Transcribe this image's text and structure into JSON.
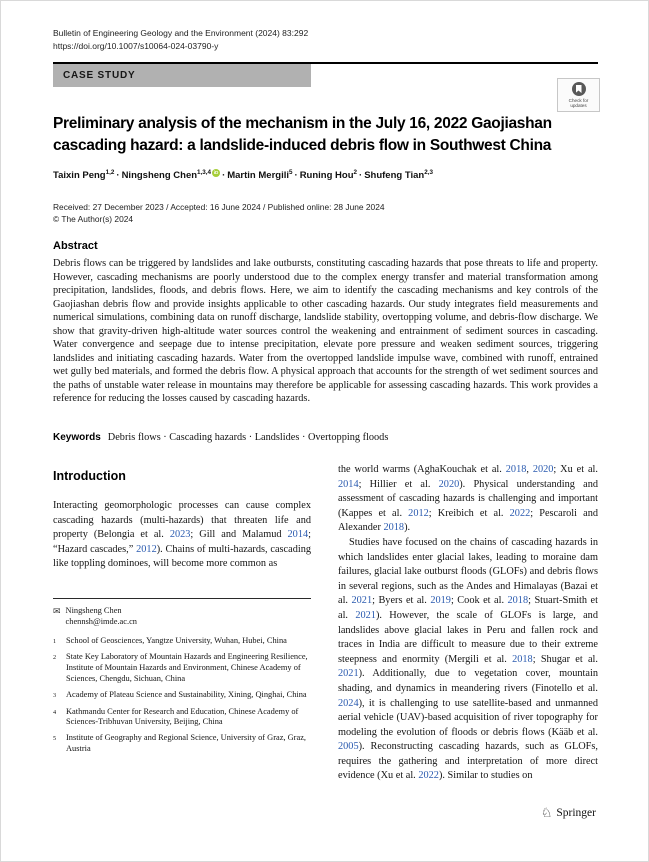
{
  "page": {
    "journal_line": "Bulletin of Engineering Geology and the Environment (2024) 83:292",
    "doi_line": "https://doi.org/10.1007/s10064-024-03790-y",
    "article_type": "CASE STUDY",
    "check_updates_label_line1": "Check for",
    "check_updates_label_line2": "updates",
    "title": "Preliminary analysis of the mechanism in the July 16, 2022 Gaojiashan cascading hazard: a landslide-induced debris flow in Southwest China",
    "received_line": "Received: 27 December 2023 / Accepted: 16 June 2024 / Published online: 28 June 2024",
    "copyright_line": "© The Author(s) 2024",
    "publisher": "Springer"
  },
  "icons": {
    "springer_horse": "♘",
    "envelope": "✉",
    "orcid_label": "iD"
  },
  "colors": {
    "link_blue": "#2b5bb0",
    "orcid_green": "#a6ce39",
    "banner_gray": "#b1b1b1"
  },
  "authors": [
    {
      "name": "Taixin Peng",
      "sup": "1,2",
      "orcid": false
    },
    {
      "name": "Ningsheng Chen",
      "sup": "1,3,4",
      "orcid": true
    },
    {
      "name": "Martin Mergili",
      "sup": "5",
      "orcid": false
    },
    {
      "name": "Runing Hou",
      "sup": "2",
      "orcid": false
    },
    {
      "name": "Shufeng Tian",
      "sup": "2,3",
      "orcid": false
    }
  ],
  "abstract": {
    "heading": "Abstract",
    "text": "Debris flows can be triggered by landslides and lake outbursts, constituting cascading hazards that pose threats to life and property. However, cascading mechanisms are poorly understood due to the complex energy transfer and material transformation among precipitation, landslides, floods, and debris flows. Here, we aim to identify the cascading mechanisms and key controls of the Gaojiashan debris flow and provide insights applicable to other cascading hazards. Our study integrates field measurements and numerical simulations, combining data on runoff discharge, landslide stability, overtopping volume, and debris-flow discharge. We show that gravity-driven high-altitude water sources control the weakening and entrainment of sediment sources in cascading. Water convergence and seepage due to intense precipitation, elevate pore pressure and weaken sediment sources, triggering landslides and initiating cascading hazards. Water from the overtopped landslide impulse wave, combined with runoff, entrained wet gully bed materials, and formed the debris flow. A physical approach that accounts for the strength of wet sediment sources and the paths of unstable water release in mountains may therefore be applicable for assessing cascading hazards. This work provides a reference for reducing the losses caused by cascading hazards."
  },
  "keywords": {
    "label": "Keywords",
    "items": [
      "Debris flows",
      "Cascading hazards",
      "Landslides",
      "Overtopping floods"
    ]
  },
  "introduction": {
    "heading": "Introduction",
    "left_paragraphs": [
      {
        "segments": [
          {
            "t": "Interacting geomorphologic processes can cause complex cascading hazards (multi-hazards) that threaten life and property (Belongia et al. "
          },
          {
            "t": "2023",
            "link": true
          },
          {
            "t": "; Gill and Malamud "
          },
          {
            "t": "2014",
            "link": true
          },
          {
            "t": "; “Hazard cascades,” "
          },
          {
            "t": "2012",
            "link": true
          },
          {
            "t": "). Chains of multi-hazards, cascading like toppling dominoes, will become more common as"
          }
        ]
      }
    ],
    "right_paragraphs": [
      {
        "segments": [
          {
            "t": "the world warms (AghaKouchak et al. "
          },
          {
            "t": "2018",
            "link": true
          },
          {
            "t": ", "
          },
          {
            "t": "2020",
            "link": true
          },
          {
            "t": "; Xu et al. "
          },
          {
            "t": "2014",
            "link": true
          },
          {
            "t": "; Hillier et al. "
          },
          {
            "t": "2020",
            "link": true
          },
          {
            "t": "). Physical understanding and assessment of cascading hazards is challenging and important (Kappes et al. "
          },
          {
            "t": "2012",
            "link": true
          },
          {
            "t": "; Kreibich et al. "
          },
          {
            "t": "2022",
            "link": true
          },
          {
            "t": "; Pescaroli and Alexander "
          },
          {
            "t": "2018",
            "link": true
          },
          {
            "t": ")."
          }
        ]
      },
      {
        "indent": true,
        "segments": [
          {
            "t": "Studies have focused on the chains of cascading hazards in which landslides enter glacial lakes, leading to moraine dam failures, glacial lake outburst floods (GLOFs) and debris flows in several regions, such as the Andes and Himalayas (Bazai et al. "
          },
          {
            "t": "2021",
            "link": true
          },
          {
            "t": "; Byers et al. "
          },
          {
            "t": "2019",
            "link": true
          },
          {
            "t": "; Cook et al. "
          },
          {
            "t": "2018",
            "link": true
          },
          {
            "t": "; Stuart-Smith et al. "
          },
          {
            "t": "2021",
            "link": true
          },
          {
            "t": "). However, the scale of GLOFs is large, and landslides above glacial lakes in Peru and fallen rock and traces in India are difficult to measure due to their extreme steepness and enormity (Mergili et al. "
          },
          {
            "t": "2018",
            "link": true
          },
          {
            "t": "; Shugar et al. "
          },
          {
            "t": "2021",
            "link": true
          },
          {
            "t": "). Additionally, due to vegetation cover, mountain shading, and dynamics in meandering rivers (Finotello et al. "
          },
          {
            "t": "2024",
            "link": true
          },
          {
            "t": "), it is challenging to use satellite-based and unmanned aerial vehicle (UAV)-based acquisition of river topography for modeling the evolution of floods or debris flows (Kääb et al. "
          },
          {
            "t": "2005",
            "link": true
          },
          {
            "t": "). Reconstructing cascading hazards, such as GLOFs, requires the gathering and interpretation of more direct evidence (Xu et al. "
          },
          {
            "t": "2022",
            "link": true
          },
          {
            "t": "). Similar to studies on"
          }
        ]
      }
    ]
  },
  "correspondence": {
    "name": "Ningsheng Chen",
    "email": "chennsh@imde.ac.cn"
  },
  "affiliations": [
    {
      "num": "1",
      "text": "School of Geosciences, Yangtze University, Wuhan, Hubei, China"
    },
    {
      "num": "2",
      "text": "State Key Laboratory of Mountain Hazards and Engineering Resilience, Institute of Mountain Hazards and Environment, Chinese Academy of Sciences, Chengdu, Sichuan, China"
    },
    {
      "num": "3",
      "text": "Academy of Plateau Science and Sustainability, Xining, Qinghai, China"
    },
    {
      "num": "4",
      "text": "Kathmandu Center for Research and Education, Chinese Academy of Sciences-Tribhuvan University, Beijing, China"
    },
    {
      "num": "5",
      "text": "Institute of Geography and Regional Science, University of Graz, Graz, Austria"
    }
  ]
}
